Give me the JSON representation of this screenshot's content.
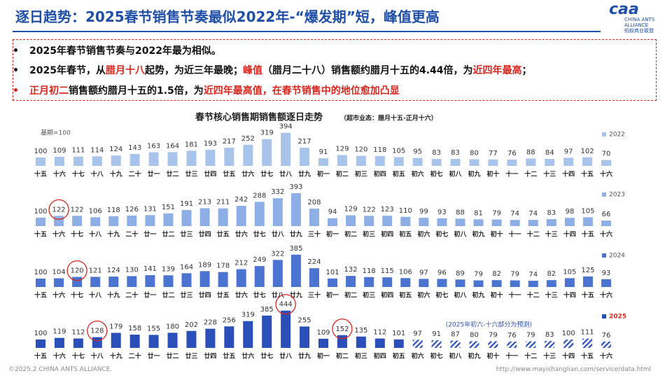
{
  "header": {
    "title": "逐日趋势：2025春节销售节奏最似2022年-“爆发期”短，峰值更高",
    "logo": [
      "caa",
      "CHINA ANTS ALLIANCE",
      "蚂蚁商业联盟"
    ]
  },
  "bullets": [
    {
      "marker_red": false,
      "segments": [
        {
          "text": "2025年春节销售节奏与2022年最为相似。",
          "emphasis": false
        }
      ]
    },
    {
      "marker_red": false,
      "segments": [
        {
          "text": "2025年春节，从",
          "emphasis": false
        },
        {
          "text": "腊月十八",
          "emphasis": true
        },
        {
          "text": "起势，为近三年最晚；",
          "emphasis": false
        },
        {
          "text": "峰值",
          "emphasis": true
        },
        {
          "text": "（腊月二十八）销售额约腊月十五的4.44倍，为",
          "emphasis": false
        },
        {
          "text": "近四年最高",
          "emphasis": true
        },
        {
          "text": "；",
          "emphasis": false
        }
      ]
    },
    {
      "marker_red": true,
      "segments": [
        {
          "text": "正月初二",
          "emphasis": true
        },
        {
          "text": "销售额约腊月十五的1.5倍，为",
          "emphasis": false
        },
        {
          "text": "近四年最高值，在春节销售中的地位愈加凸显",
          "emphasis": true
        }
      ]
    }
  ],
  "chart_data": {
    "type": "bar",
    "title": "春节核心销售期销售额逐日走势",
    "subtitle": "（超市业态：腊月十五-正月十六）",
    "base_note": "基期=100",
    "forecast_note": "(2025年初六-十六部分为预测)",
    "panels": [
      {
        "name": "2022",
        "color": "#a9c4ea",
        "legend_color": "#555",
        "categories": [
          "十五",
          "十六",
          "十七",
          "十八",
          "十九",
          "二十",
          "廿一",
          "廿二",
          "廿三",
          "廿四",
          "廿五",
          "廿六",
          "廿七",
          "廿八",
          "廿九",
          "初一",
          "初二",
          "初三",
          "初四",
          "初五",
          "初六",
          "初七",
          "初八",
          "初九",
          "初十",
          "十一",
          "十二",
          "十三",
          "十四",
          "十五",
          "十六"
        ],
        "values": [
          100,
          109,
          111,
          114,
          124,
          143,
          163,
          164,
          181,
          193,
          217,
          252,
          319,
          394,
          217,
          91,
          129,
          120,
          118,
          105,
          95,
          83,
          83,
          80,
          77,
          76,
          88,
          84,
          97,
          102,
          70
        ],
        "circled": []
      },
      {
        "name": "2023",
        "color": "#8eaee6",
        "legend_color": "#555",
        "categories": [
          "十五",
          "十六",
          "十七",
          "十八",
          "十九",
          "二十",
          "廿一",
          "廿二",
          "廿三",
          "廿四",
          "廿五",
          "廿六",
          "廿七",
          "廿八",
          "廿九",
          "三十",
          "初一",
          "初二",
          "初三",
          "初四",
          "初五",
          "初六",
          "初七",
          "初八",
          "初九",
          "初十",
          "十一",
          "十二",
          "十三",
          "十四",
          "十五",
          "十六"
        ],
        "values": [
          100,
          122,
          122,
          106,
          118,
          126,
          131,
          151,
          191,
          213,
          211,
          242,
          288,
          332,
          393,
          208,
          94,
          129,
          122,
          123,
          110,
          99,
          93,
          88,
          81,
          79,
          74,
          74,
          83,
          98,
          105,
          66
        ],
        "circled": [
          1
        ]
      },
      {
        "name": "2024",
        "color": "#4a74d0",
        "legend_color": "#555",
        "categories": [
          "十五",
          "十六",
          "十七",
          "十八",
          "十九",
          "二十",
          "廿一",
          "廿二",
          "廿三",
          "廿四",
          "廿五",
          "廿六",
          "廿七",
          "廿八",
          "廿九",
          "三十",
          "初一",
          "初二",
          "初三",
          "初四",
          "初五",
          "初六",
          "初七",
          "初八",
          "初九",
          "初十",
          "十一",
          "十二",
          "十三",
          "十四",
          "十五",
          "十六"
        ],
        "values": [
          100,
          104,
          120,
          121,
          124,
          130,
          141,
          139,
          164,
          189,
          178,
          212,
          249,
          322,
          385,
          224,
          101,
          132,
          118,
          115,
          106,
          97,
          96,
          89,
          79,
          82,
          79,
          74,
          82,
          105,
          125,
          93
        ],
        "circled": [
          2
        ]
      },
      {
        "name": "2025",
        "color": "#2a4fb8",
        "legend_color": "#d9261c",
        "forecast_start": 20,
        "categories": [
          "十五",
          "十六",
          "十七",
          "十八",
          "十九",
          "二十",
          "廿一",
          "廿二",
          "廿三",
          "廿四",
          "廿五",
          "廿六",
          "廿七",
          "廿八",
          "廿九",
          "初一",
          "初二",
          "初三",
          "初四",
          "初五",
          "初六",
          "初七",
          "初八",
          "初九",
          "初十",
          "十一",
          "十二",
          "十三",
          "十四",
          "十五",
          "十六"
        ],
        "values": [
          100,
          119,
          112,
          128,
          179,
          158,
          155,
          180,
          202,
          228,
          256,
          319,
          385,
          444,
          255,
          109,
          152,
          135,
          112,
          101,
          97,
          91,
          87,
          80,
          79,
          76,
          79,
          83,
          100,
          111,
          76
        ],
        "circled": [
          3,
          13,
          16
        ]
      }
    ]
  },
  "footer": {
    "left": "©2025.2 CHINA ANTS ALLIANCE.",
    "right": "http://www.mayishanglian.com/service/data.html"
  }
}
